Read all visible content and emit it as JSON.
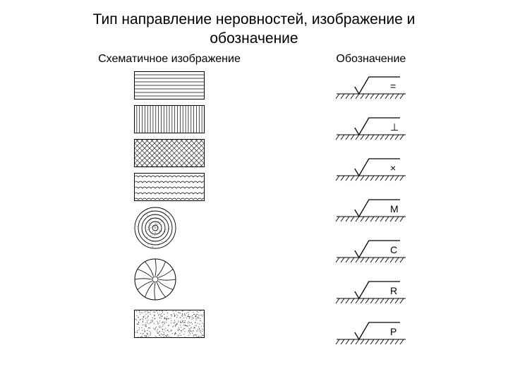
{
  "title_line1": "Тип направление неровностей, изображение и",
  "title_line2": "обозначение",
  "left_header": "Схематичное изображение",
  "right_header": "Обозначение",
  "colors": {
    "stroke": "#000000",
    "bg": "#ffffff",
    "text": "#000000"
  },
  "swatch": {
    "rect_w": 100,
    "rect_h": 40,
    "circle_d": 60
  },
  "symbol": {
    "w": 110,
    "h": 42,
    "check_stroke": 1.3,
    "hatch_stroke": 0.9,
    "letter_font": 14
  },
  "rows": [
    {
      "pattern": "horiz",
      "symbol_text": "="
    },
    {
      "pattern": "vert",
      "symbol_text": "⊥"
    },
    {
      "pattern": "cross",
      "symbol_text": "×"
    },
    {
      "pattern": "wavy",
      "symbol_text": "M"
    },
    {
      "pattern": "concentric",
      "symbol_text": "C"
    },
    {
      "pattern": "radial",
      "symbol_text": "R"
    },
    {
      "pattern": "dots",
      "symbol_text": "P"
    }
  ]
}
